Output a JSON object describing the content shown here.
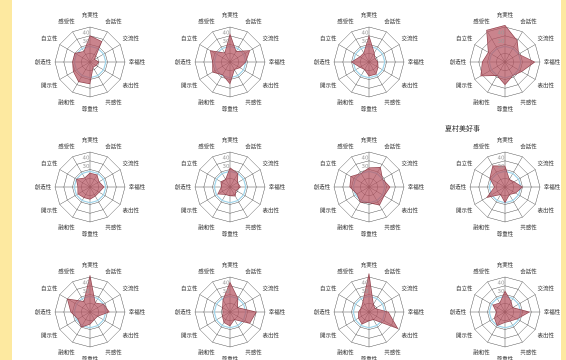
{
  "axes": [
    "充実性",
    "会話性",
    "交流性",
    "幸福性",
    "表出性",
    "共感性",
    "尊重性",
    "融和性",
    "開示性",
    "創造性",
    "自立性",
    "感受性"
  ],
  "scale_labels": [
    "40",
    "30"
  ],
  "caption": "夏村美好事",
  "colors": {
    "fill": "#b55561",
    "stroke": "#8c3a45",
    "baseline": "#9ed4ea",
    "grid": "#555555"
  },
  "chart_data": [
    {
      "type": "radar",
      "ylim": [
        0,
        40
      ],
      "values": [
        30,
        27,
        6,
        10,
        8,
        7,
        25,
        26,
        22,
        20,
        20,
        14
      ]
    },
    {
      "type": "radar",
      "ylim": [
        0,
        40
      ],
      "values": [
        32,
        14,
        26,
        18,
        13,
        10,
        25,
        17,
        23,
        20,
        26,
        12
      ]
    },
    {
      "type": "radar",
      "ylim": [
        0,
        40
      ],
      "values": [
        30,
        12,
        8,
        10,
        12,
        16,
        16,
        10,
        12,
        20,
        12,
        12
      ]
    },
    {
      "type": "radar",
      "ylim": [
        0,
        40
      ],
      "values": [
        42,
        28,
        18,
        34,
        22,
        18,
        26,
        18,
        32,
        26,
        22,
        42
      ]
    },
    {
      "type": "radar",
      "ylim": [
        0,
        40
      ],
      "values": [
        16,
        16,
        12,
        16,
        12,
        12,
        14,
        14,
        16,
        14,
        18,
        12
      ]
    },
    {
      "type": "radar",
      "ylim": [
        0,
        40
      ],
      "values": [
        22,
        18,
        10,
        12,
        8,
        12,
        10,
        10,
        16,
        10,
        12,
        10
      ]
    },
    {
      "type": "radar",
      "ylim": [
        0,
        40
      ],
      "values": [
        22,
        26,
        18,
        24,
        20,
        24,
        18,
        20,
        16,
        22,
        24,
        18
      ]
    },
    {
      "type": "radar",
      "ylim": [
        0,
        40
      ],
      "values": [
        24,
        10,
        12,
        20,
        14,
        10,
        18,
        10,
        24,
        12,
        20,
        28
      ]
    },
    {
      "type": "radar",
      "ylim": [
        0,
        40
      ],
      "values": [
        42,
        12,
        18,
        22,
        10,
        10,
        14,
        20,
        16,
        22,
        30,
        14
      ]
    },
    {
      "type": "radar",
      "ylim": [
        0,
        40
      ],
      "values": [
        34,
        18,
        10,
        30,
        26,
        10,
        16,
        14,
        10,
        8,
        10,
        16
      ]
    },
    {
      "type": "radar",
      "ylim": [
        0,
        40
      ],
      "values": [
        44,
        10,
        8,
        22,
        38,
        10,
        10,
        16,
        14,
        12,
        10,
        14
      ]
    },
    {
      "type": "radar",
      "ylim": [
        0,
        40
      ],
      "values": [
        24,
        14,
        10,
        28,
        16,
        12,
        12,
        18,
        14,
        10,
        16,
        12
      ]
    }
  ]
}
